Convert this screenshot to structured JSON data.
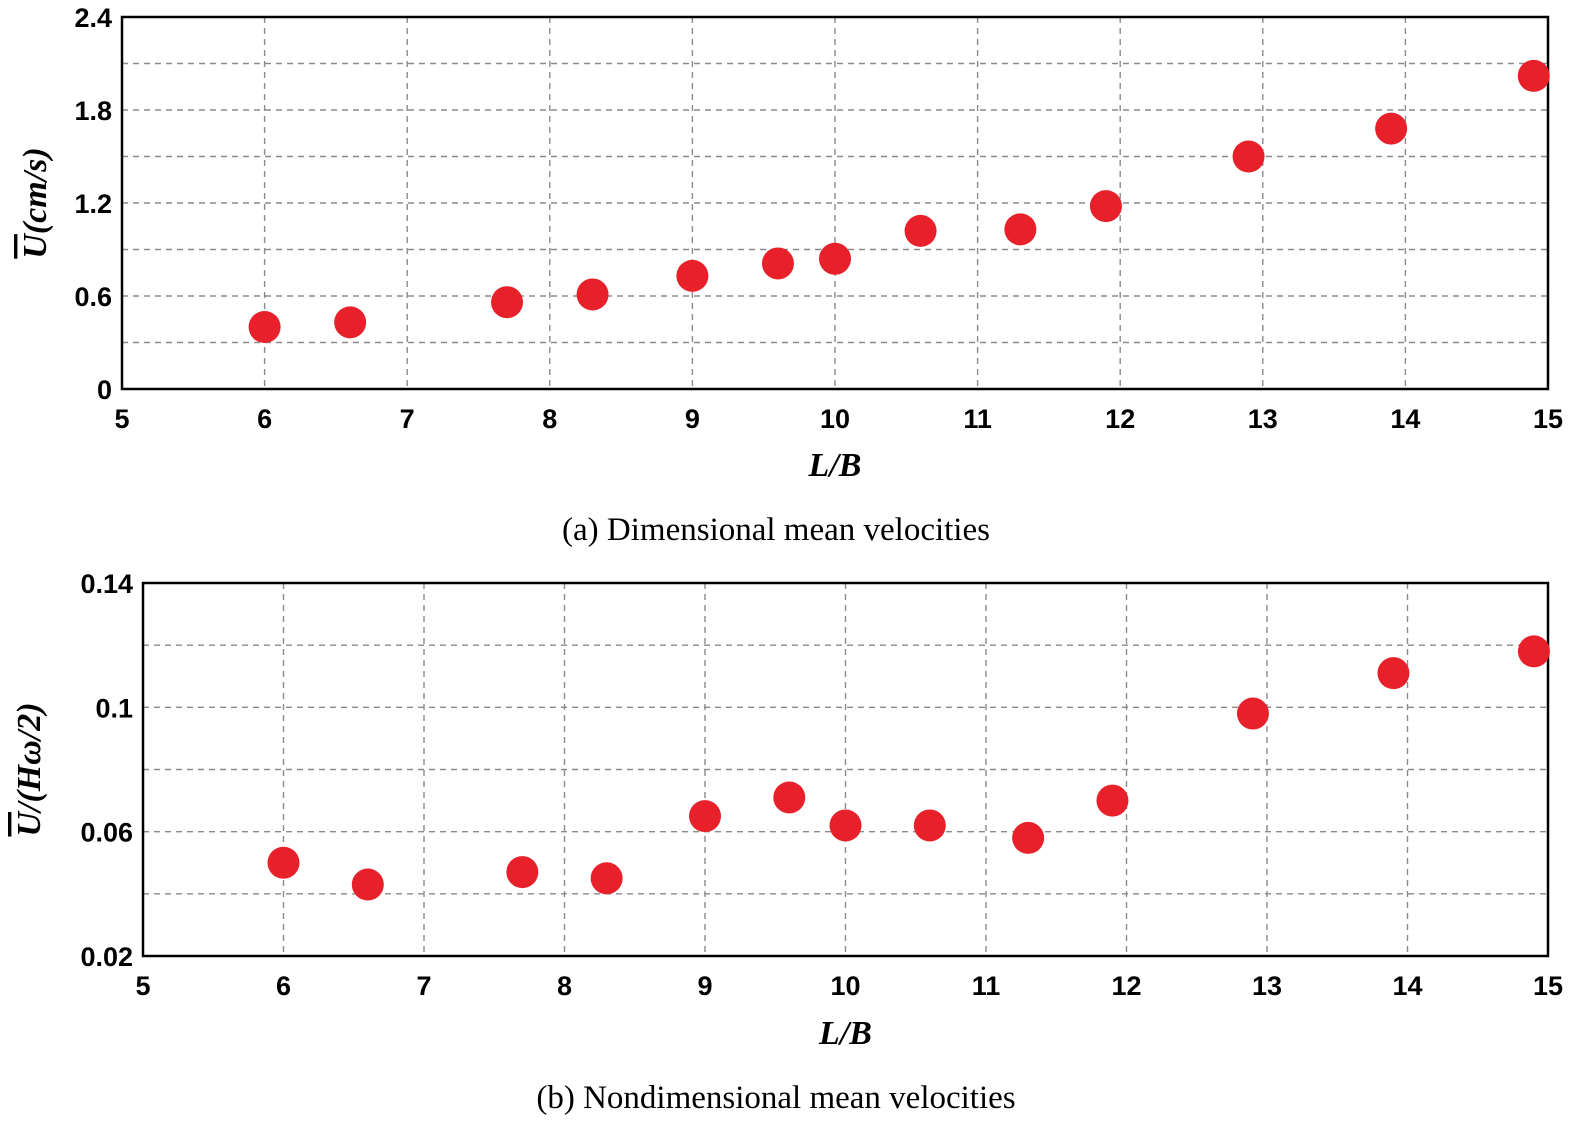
{
  "chart_data": [
    {
      "type": "scatter",
      "caption": "(a) Dimensional mean velocities",
      "xlabel": "L/B",
      "ylabel": {
        "symbol": "U",
        "rest": "(cm/s)"
      },
      "xlim": [
        5,
        15
      ],
      "ylim": [
        0,
        2.4
      ],
      "xticks": [
        5,
        6,
        7,
        8,
        9,
        10,
        11,
        12,
        13,
        14,
        15
      ],
      "yticks": [
        "0",
        "0.6",
        "1.2",
        "1.8",
        "2.4"
      ],
      "ytick_values": [
        0,
        0.6,
        1.2,
        1.8,
        2.4
      ],
      "grid": true,
      "color": "#e8202a",
      "series": [
        {
          "x": [
            6.0,
            6.6,
            7.7,
            8.3,
            9.0,
            9.6,
            10.0,
            10.6,
            11.3,
            11.9,
            12.9,
            13.9,
            14.9
          ],
          "y": [
            0.4,
            0.43,
            0.56,
            0.61,
            0.73,
            0.81,
            0.84,
            1.02,
            1.03,
            1.18,
            1.5,
            1.68,
            2.02
          ]
        }
      ]
    },
    {
      "type": "scatter",
      "caption": "(b) Nondimensional mean velocities",
      "xlabel": "L/B",
      "ylabel": {
        "symbol": "U",
        "rest": "/(Hω/2)"
      },
      "xlim": [
        5,
        15
      ],
      "ylim": [
        0.02,
        0.14
      ],
      "xticks": [
        5,
        6,
        7,
        8,
        9,
        10,
        11,
        12,
        13,
        14,
        15
      ],
      "yticks": [
        "0.02",
        "0.06",
        "0.1",
        "0.14"
      ],
      "ytick_values": [
        0.02,
        0.06,
        0.1,
        0.14
      ],
      "grid": true,
      "color": "#e8202a",
      "series": [
        {
          "x": [
            6.0,
            6.6,
            7.7,
            8.3,
            9.0,
            9.6,
            10.0,
            10.6,
            11.3,
            11.9,
            12.9,
            13.9,
            14.9
          ],
          "y": [
            0.05,
            0.043,
            0.047,
            0.045,
            0.065,
            0.071,
            0.062,
            0.062,
            0.058,
            0.07,
            0.098,
            0.111,
            0.118
          ]
        }
      ]
    }
  ]
}
